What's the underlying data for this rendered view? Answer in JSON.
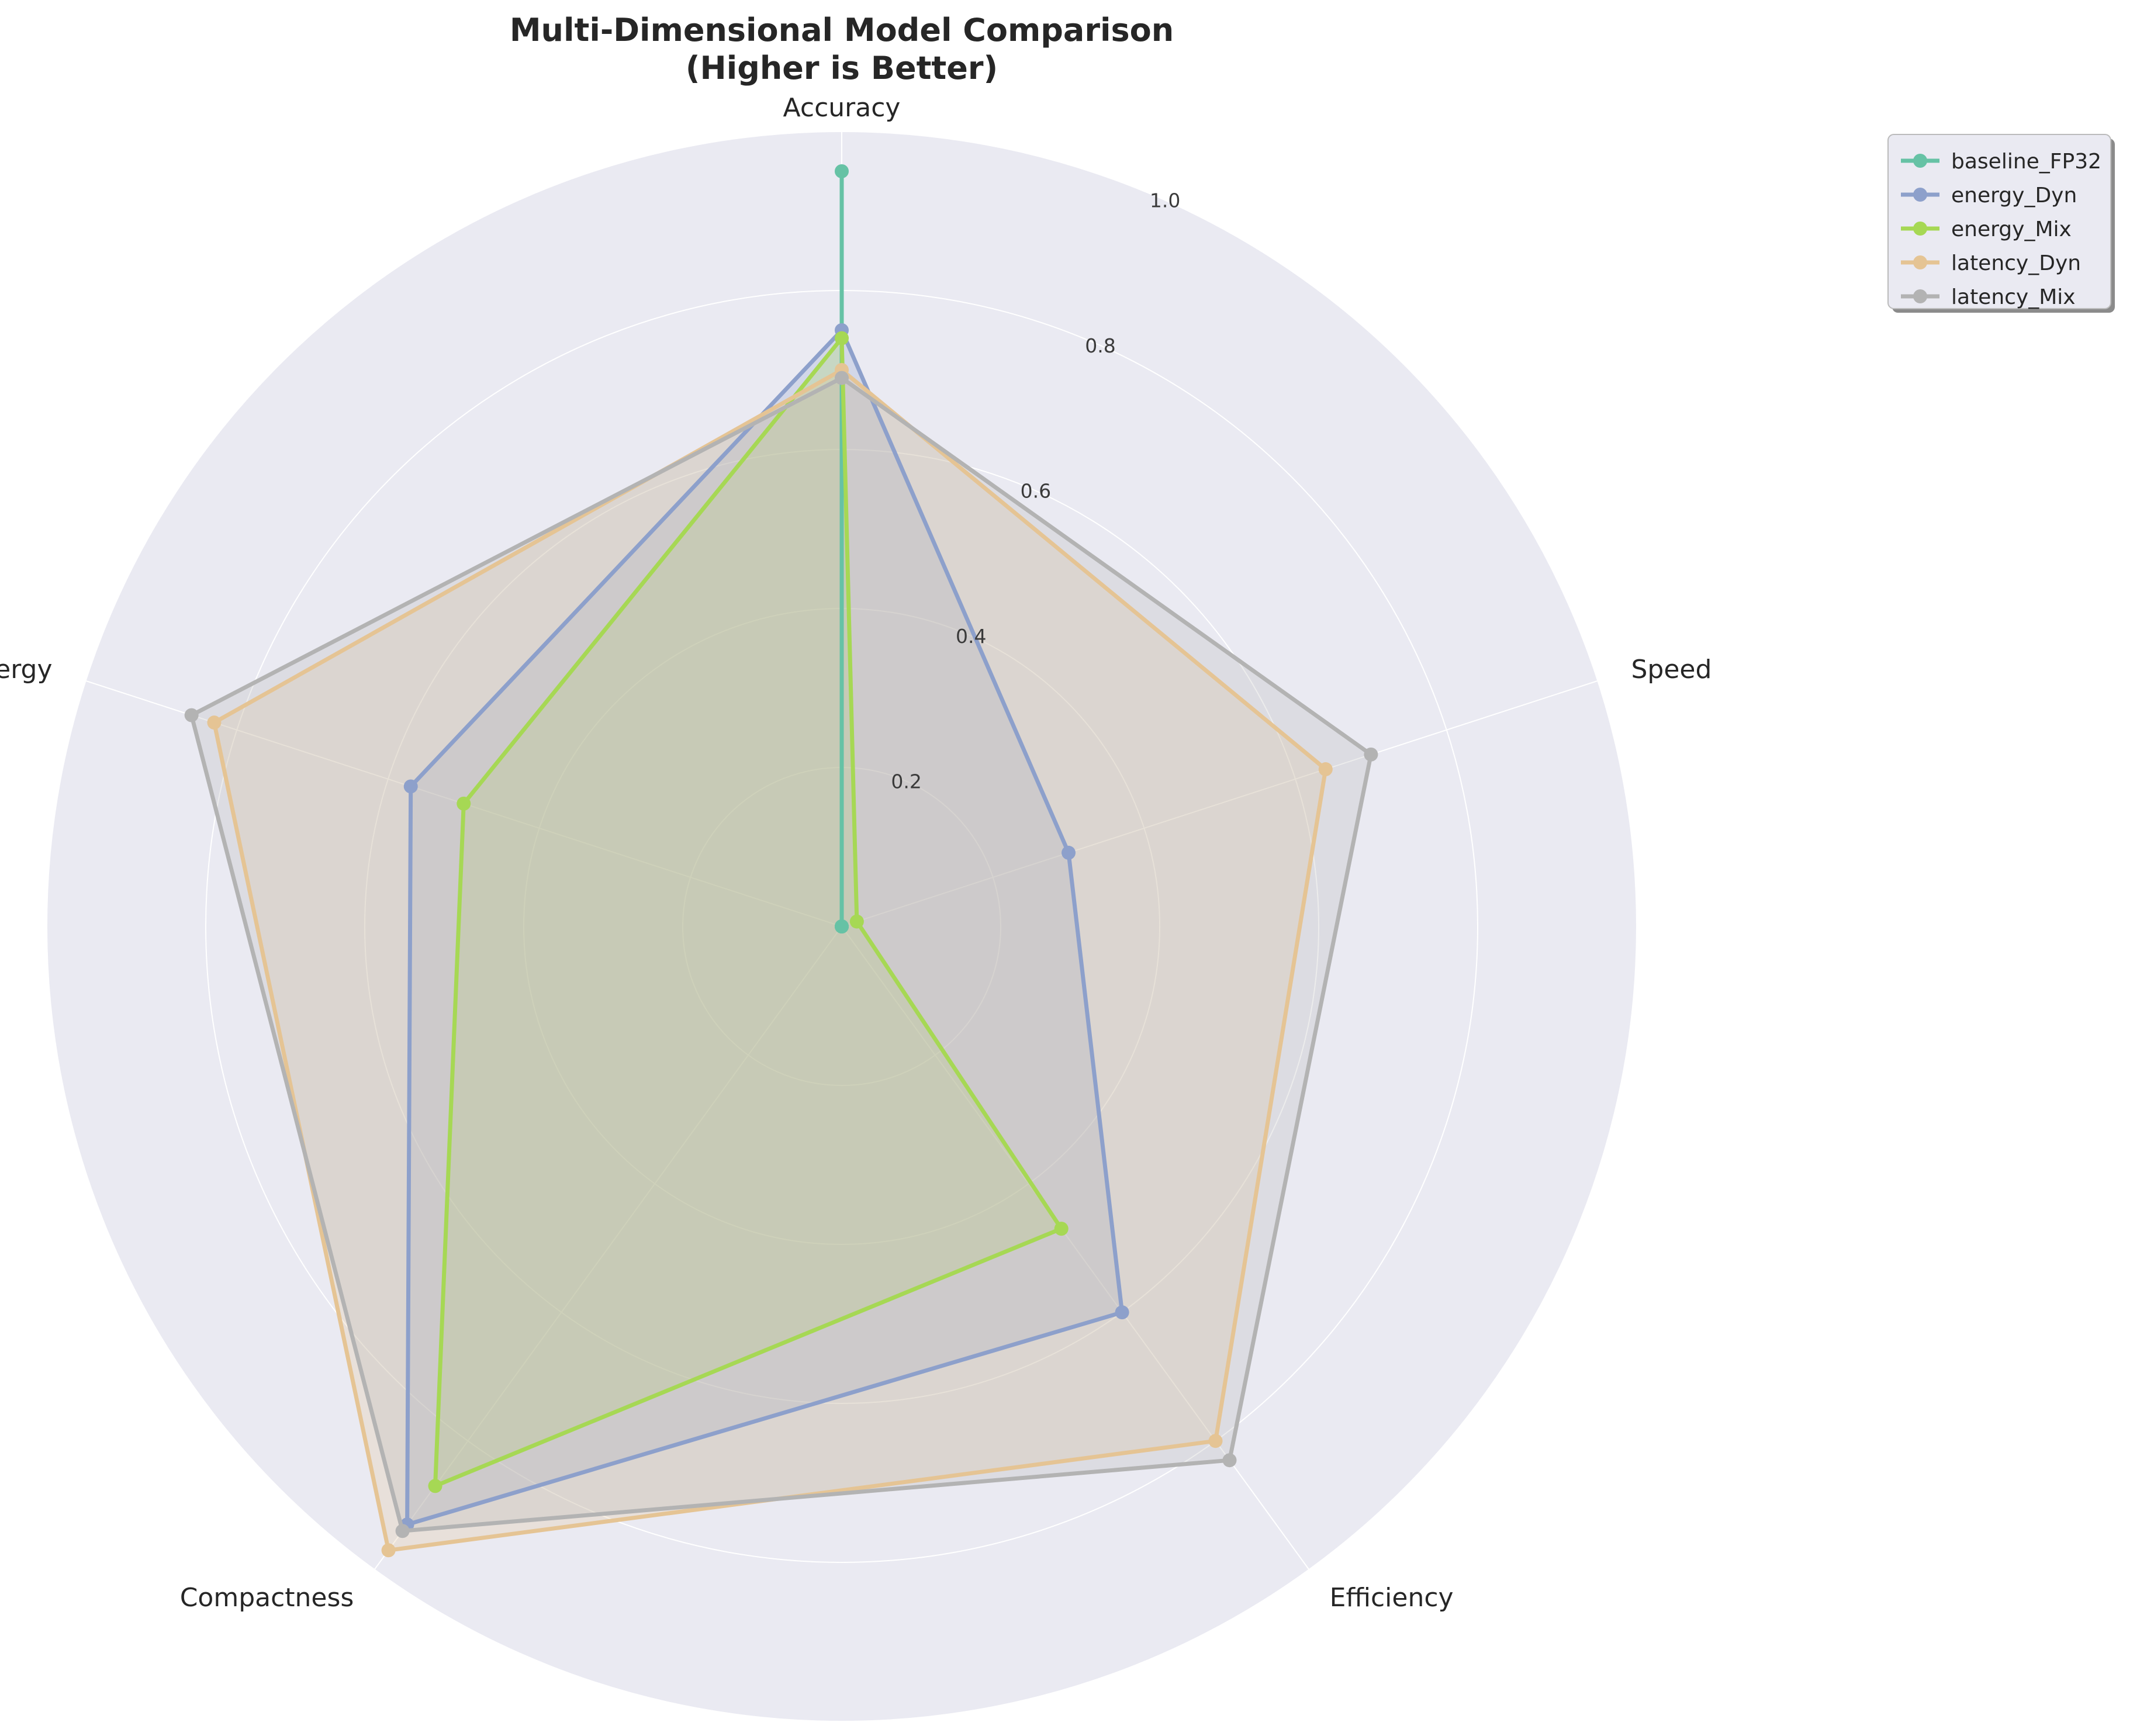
{
  "chart_data": {
    "type": "radar",
    "title_line1": "Multi-Dimensional Model Comparison",
    "title_line2": "(Higher is Better)",
    "axes": [
      "Accuracy",
      "Speed",
      "Efficiency",
      "Compactness",
      "Energy"
    ],
    "rlim": [
      0,
      1.0
    ],
    "rticks": [
      0.2,
      0.4,
      0.6,
      0.8,
      1.0
    ],
    "rtick_labels": [
      "0.2",
      "0.4",
      "0.6",
      "0.8",
      "1.0"
    ],
    "grid": true,
    "legend_position": "upper right, outside plot",
    "background_color": "#eaeaf2",
    "series": [
      {
        "name": "baseline_FP32",
        "color": "#66c2a5",
        "values": [
          0.95,
          0.0,
          0.0,
          0.0,
          0.0
        ]
      },
      {
        "name": "energy_Dyn",
        "color": "#8da0cb",
        "values": [
          0.75,
          0.3,
          0.6,
          0.93,
          0.57
        ]
      },
      {
        "name": "energy_Mix",
        "color": "#a6d854",
        "values": [
          0.74,
          0.02,
          0.47,
          0.87,
          0.5
        ]
      },
      {
        "name": "latency_Dyn",
        "color": "#e5c494",
        "values": [
          0.7,
          0.64,
          0.8,
          0.97,
          0.83
        ]
      },
      {
        "name": "latency_Mix",
        "color": "#b3b3b3",
        "values": [
          0.69,
          0.7,
          0.83,
          0.94,
          0.86
        ]
      }
    ]
  }
}
